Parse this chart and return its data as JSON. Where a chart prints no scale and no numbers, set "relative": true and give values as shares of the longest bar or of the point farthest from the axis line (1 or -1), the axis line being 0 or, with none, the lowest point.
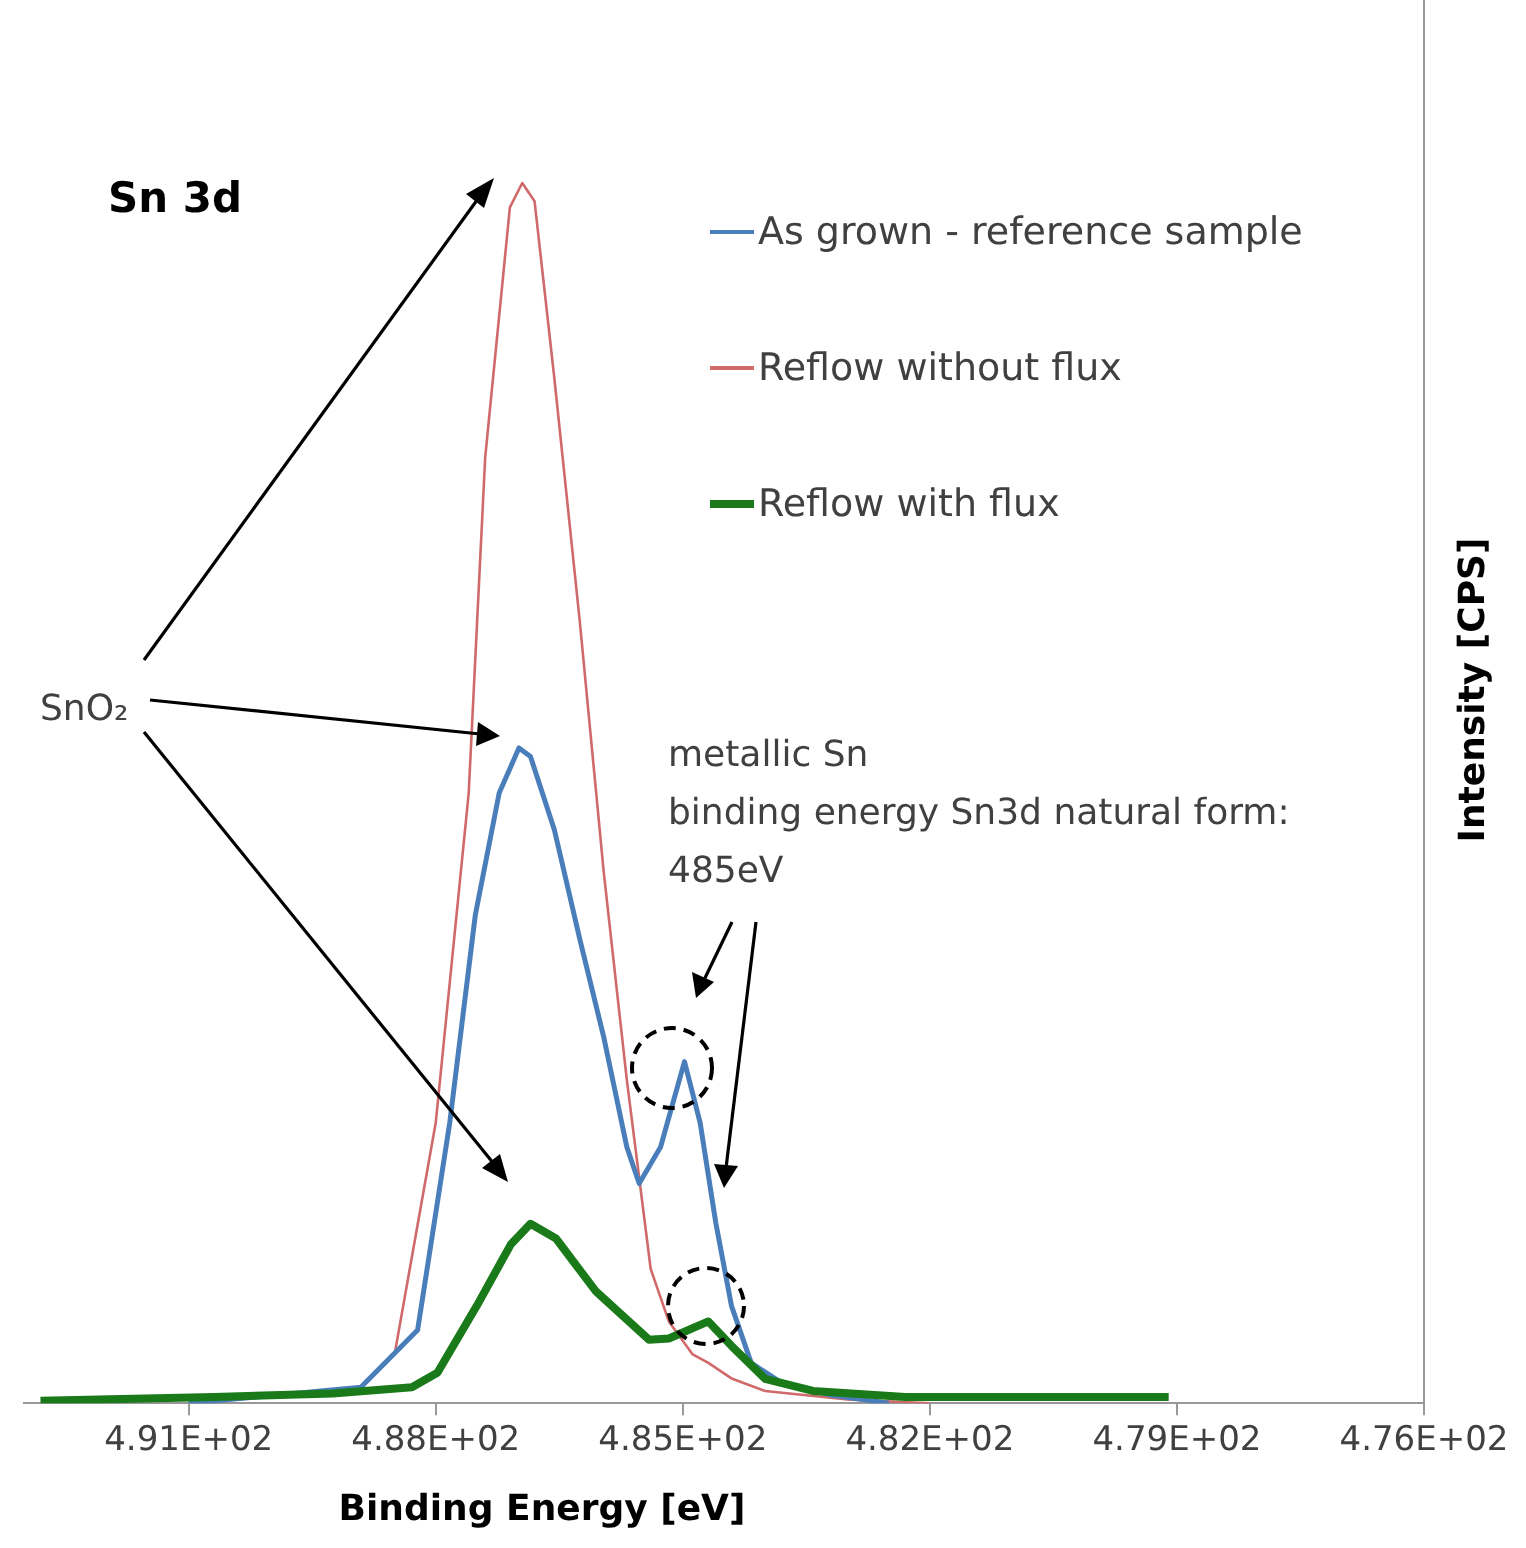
{
  "chart_data": {
    "type": "line",
    "title": "Sn 3d",
    "xlabel": "Binding Energy [eV]",
    "ylabel": "Intensity [CPS]",
    "relative": true,
    "xlim": [
      493,
      476
    ],
    "xticks": [
      {
        "value": 491,
        "label": "4.91E+02"
      },
      {
        "value": 488,
        "label": "4.88E+02"
      },
      {
        "value": 485,
        "label": "4.85E+02"
      },
      {
        "value": 482,
        "label": "4.82E+02"
      },
      {
        "value": 479,
        "label": "4.79E+02"
      },
      {
        "value": 476,
        "label": "4.76E+02"
      }
    ],
    "tick_labels": "x",
    "legend": "top right",
    "marker": "none",
    "line_style": "solid",
    "series": [
      {
        "name": "As grown - reference  sample",
        "color": "#4a7ebb",
        "x": [
          491,
          488.91,
          488.22,
          487.83,
          487.52,
          487.23,
          486.99,
          486.85,
          486.56,
          486.25,
          485.96,
          485.68,
          485.53,
          485.27,
          484.98,
          484.79,
          484.6,
          484.41,
          484.17,
          483.81,
          483.23,
          482.5
        ],
        "values": [
          0,
          0.013,
          0.06,
          0.23,
          0.4,
          0.5,
          0.537,
          0.53,
          0.47,
          0.38,
          0.3,
          0.21,
          0.18,
          0.21,
          0.28,
          0.23,
          0.148,
          0.08,
          0.033,
          0.017,
          0.007,
          0
        ]
      },
      {
        "name": "Reflow without flux",
        "color": "#d06a6a",
        "x": [
          488.5,
          488.0,
          487.6,
          487.4,
          487.1,
          486.95,
          486.8,
          486.56,
          486.25,
          485.96,
          485.68,
          485.39,
          485.17,
          484.88,
          484.69,
          484.4,
          484.0,
          483.0,
          482.0
        ],
        "values": [
          0.04,
          0.23,
          0.5,
          0.775,
          0.98,
          1,
          0.985,
          0.84,
          0.64,
          0.435,
          0.265,
          0.11,
          0.067,
          0.04,
          0.033,
          0.02,
          0.01,
          0.003,
          0
        ]
      },
      {
        "name": "Reflow with flux",
        "color": "#1a7a1a",
        "x": [
          492.8,
          490.69,
          489.25,
          488.29,
          487.98,
          487.5,
          487.09,
          486.85,
          486.54,
          486.06,
          485.41,
          485.17,
          484.69,
          484.41,
          484.0,
          483.42,
          482.3,
          479.1
        ],
        "values": [
          0.002,
          0.005,
          0.008,
          0.013,
          0.025,
          0.08,
          0.13,
          0.147,
          0.135,
          0.092,
          0.052,
          0.053,
          0.067,
          0.047,
          0.02,
          0.01,
          0.005,
          0.005
        ]
      }
    ],
    "annotations": [
      "SnO₂",
      "metallic Sn\nbinding energy Sn3d natural form:\n485eV"
    ]
  }
}
